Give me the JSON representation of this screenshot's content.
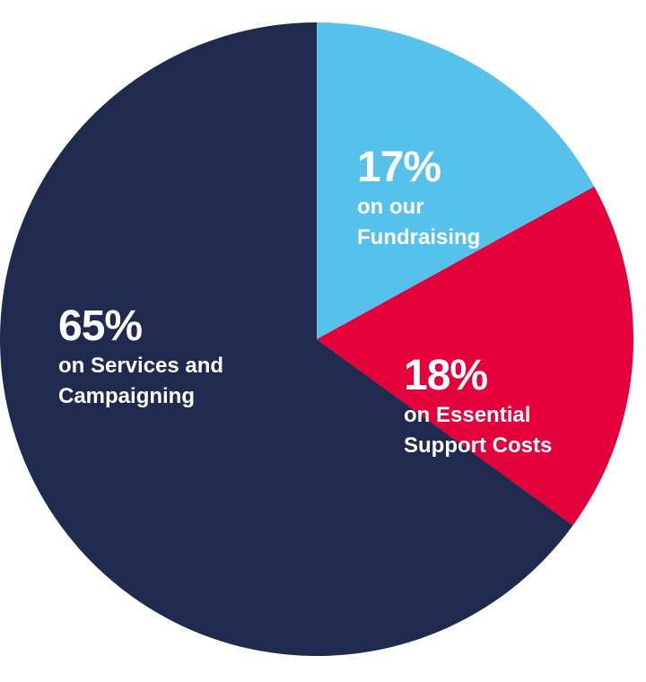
{
  "chart_data": {
    "type": "pie",
    "categories": [
      "on our Fundraising",
      "on Essential Support Costs",
      "on Services and Campaigning"
    ],
    "values": [
      17,
      18,
      65
    ],
    "value_labels": [
      "17%",
      "18%",
      "65%"
    ],
    "colors": [
      "#56c1ea",
      "#e4003b",
      "#1f2a4e"
    ]
  }
}
